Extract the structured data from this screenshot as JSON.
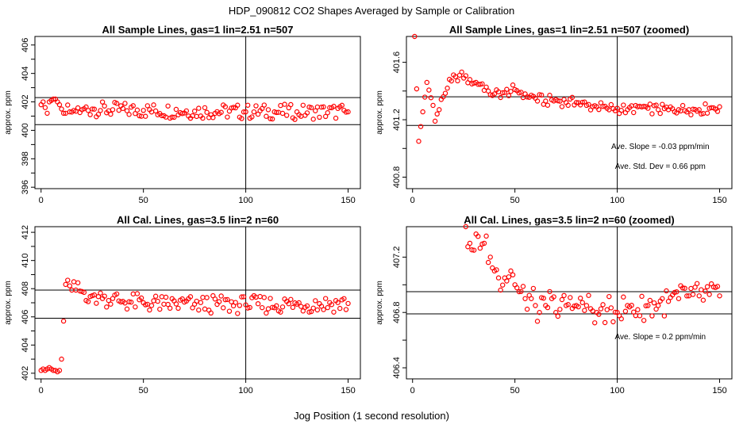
{
  "figure": {
    "title": "HDP_090812  CO2 Shapes Averaged by Sample or Calibration",
    "xlabel": "Jog Position (1 second resolution)"
  },
  "chart_data": [
    {
      "type": "scatter",
      "title": "All Sample Lines, gas=1 lin=2.51 n=507",
      "ylabel": "approx. ppm",
      "xlim": [
        -3,
        156
      ],
      "ylim": [
        395.9,
        406.6
      ],
      "xticks": [
        "0",
        "50",
        "100",
        "150"
      ],
      "yticks": [
        "396",
        "398",
        "400",
        "402",
        "404",
        "406"
      ],
      "hlines": [
        400.4,
        402.3
      ],
      "vlines": [
        100
      ],
      "point_color": "#ff0000",
      "annotations": [],
      "keypoints": [
        [
          0,
          401.8
        ],
        [
          1,
          402.0
        ],
        [
          2,
          401.6
        ],
        [
          3,
          401.2
        ],
        [
          4,
          402.0
        ],
        [
          5,
          402.1
        ],
        [
          6,
          402.2
        ],
        [
          7,
          402.2
        ],
        [
          8,
          402.0
        ],
        [
          9,
          401.8
        ],
        [
          10,
          401.5
        ],
        [
          11,
          401.2
        ],
        [
          12,
          401.2
        ],
        [
          14,
          401.3
        ],
        [
          16,
          401.4
        ],
        [
          20,
          401.45
        ],
        [
          25,
          401.5
        ],
        [
          35,
          401.45
        ],
        [
          50,
          401.4
        ],
        [
          75,
          401.35
        ],
        [
          100,
          401.3
        ],
        [
          125,
          401.3
        ],
        [
          150,
          401.3
        ]
      ]
    },
    {
      "type": "scatter",
      "title": "All Sample Lines, gas=1 lin=2.51 n=507 (zoomed)",
      "ylabel": "approx. ppm",
      "xlim": [
        -3,
        156
      ],
      "ylim": [
        400.72,
        401.78
      ],
      "xticks": [
        "0",
        "50",
        "100",
        "150"
      ],
      "yticks": [
        "400.8",
        "401.2",
        "401.6"
      ],
      "hlines": [
        401.36,
        401.16
      ],
      "vlines": [
        100
      ],
      "point_color": "#ff0000",
      "annotations": [
        "Ave. Slope =  -0.03  ppm/min",
        "Ave. Std. Dev =  0.66  ppm"
      ],
      "keypoints": [
        [
          1,
          401.78
        ],
        [
          3,
          401.05
        ],
        [
          7,
          401.46
        ],
        [
          10,
          401.3
        ],
        [
          11,
          401.19
        ],
        [
          12,
          401.24
        ],
        [
          13,
          401.27
        ],
        [
          15,
          401.36
        ],
        [
          17,
          401.42
        ],
        [
          19,
          401.47
        ],
        [
          21,
          401.5
        ],
        [
          23,
          401.51
        ],
        [
          25,
          401.49
        ],
        [
          28,
          401.48
        ],
        [
          31,
          401.46
        ],
        [
          34,
          401.45
        ],
        [
          37,
          401.4
        ],
        [
          40,
          401.38
        ],
        [
          45,
          401.39
        ],
        [
          50,
          401.41
        ],
        [
          55,
          401.38
        ],
        [
          60,
          401.35
        ],
        [
          65,
          401.33
        ],
        [
          70,
          401.34
        ],
        [
          75,
          401.32
        ],
        [
          80,
          401.32
        ],
        [
          85,
          401.3
        ],
        [
          90,
          401.29
        ],
        [
          95,
          401.28
        ],
        [
          100,
          401.28
        ],
        [
          105,
          401.27
        ],
        [
          110,
          401.29
        ],
        [
          115,
          401.28
        ],
        [
          120,
          401.27
        ],
        [
          125,
          401.27
        ],
        [
          130,
          401.27
        ],
        [
          135,
          401.27
        ],
        [
          140,
          401.27
        ],
        [
          145,
          401.28
        ],
        [
          150,
          401.29
        ]
      ]
    },
    {
      "type": "scatter",
      "title": "All Cal. Lines, gas=3.5 lin=2 n=60",
      "ylabel": "approx. ppm",
      "xlim": [
        -3,
        156
      ],
      "ylim": [
        401.6,
        412.4
      ],
      "xticks": [
        "0",
        "50",
        "100",
        "150"
      ],
      "yticks": [
        "402",
        "404",
        "406",
        "408",
        "410",
        "412"
      ],
      "hlines": [
        407.9,
        405.9
      ],
      "vlines": [
        100
      ],
      "point_color": "#ff0000",
      "annotations": [],
      "keypoints": [
        [
          0,
          402.2
        ],
        [
          1,
          402.3
        ],
        [
          2,
          402.2
        ],
        [
          3,
          402.3
        ],
        [
          4,
          402.4
        ],
        [
          5,
          402.3
        ],
        [
          6,
          402.2
        ],
        [
          7,
          402.2
        ],
        [
          8,
          402.1
        ],
        [
          9,
          402.2
        ],
        [
          10,
          403.0
        ],
        [
          11,
          405.7
        ],
        [
          12,
          408.3
        ],
        [
          13,
          408.6
        ],
        [
          14,
          408.2
        ],
        [
          15,
          407.9
        ],
        [
          17,
          407.9
        ],
        [
          20,
          407.8
        ],
        [
          25,
          407.5
        ],
        [
          30,
          407.3
        ],
        [
          35,
          407.3
        ],
        [
          40,
          407.1
        ],
        [
          50,
          407.0
        ],
        [
          60,
          406.9
        ],
        [
          75,
          406.9
        ],
        [
          100,
          406.85
        ],
        [
          125,
          406.9
        ],
        [
          150,
          406.95
        ]
      ]
    },
    {
      "type": "scatter",
      "title": "All Cal. Lines, gas=3.5 lin=2 n=60 (zoomed)",
      "ylabel": "approx. ppm",
      "xlim": [
        -3,
        156
      ],
      "ylim": [
        406.32,
        407.42
      ],
      "xticks": [
        "0",
        "50",
        "100",
        "150"
      ],
      "yticks": [
        "406.4",
        "406.8",
        "407.2"
      ],
      "hlines": [
        406.95,
        406.79
      ],
      "vlines": [
        100
      ],
      "point_color": "#ff0000",
      "annotations": [
        "Ave. Slope =  0.2  ppm/min"
      ],
      "keypoints": [
        [
          26,
          407.42
        ],
        [
          28,
          407.3
        ],
        [
          30,
          407.25
        ],
        [
          32,
          407.35
        ],
        [
          35,
          407.3
        ],
        [
          38,
          407.2
        ],
        [
          40,
          407.1
        ],
        [
          42,
          407.05
        ],
        [
          45,
          407.05
        ],
        [
          48,
          407.1
        ],
        [
          50,
          407.0
        ],
        [
          52,
          406.95
        ],
        [
          55,
          406.9
        ],
        [
          58,
          406.9
        ],
        [
          60,
          406.85
        ],
        [
          62,
          406.8
        ],
        [
          65,
          406.85
        ],
        [
          68,
          406.9
        ],
        [
          70,
          406.8
        ],
        [
          75,
          406.85
        ],
        [
          80,
          406.85
        ],
        [
          85,
          406.85
        ],
        [
          90,
          406.8
        ],
        [
          95,
          406.82
        ],
        [
          100,
          406.8
        ],
        [
          105,
          406.85
        ],
        [
          110,
          406.82
        ],
        [
          115,
          406.85
        ],
        [
          120,
          406.85
        ],
        [
          125,
          406.88
        ],
        [
          130,
          406.9
        ],
        [
          135,
          406.92
        ],
        [
          140,
          406.92
        ],
        [
          145,
          406.93
        ],
        [
          150,
          406.92
        ]
      ]
    }
  ]
}
